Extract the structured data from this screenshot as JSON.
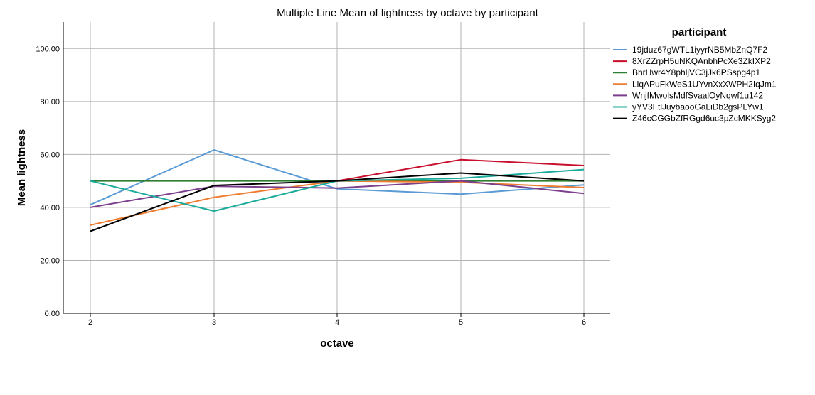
{
  "chart_data": {
    "type": "line",
    "title": "Multiple Line Mean of lightness by octave by participant",
    "xlabel": "octave",
    "ylabel": "Mean lightness",
    "x": [
      2,
      3,
      4,
      5,
      6
    ],
    "x_tick_labels": [
      "2",
      "3",
      "4",
      "5",
      "6"
    ],
    "ylim": [
      0,
      110
    ],
    "y_ticks": [
      0,
      20,
      40,
      60,
      80,
      100
    ],
    "y_tick_labels": [
      "0.00",
      "20.00",
      "40.00",
      "60.00",
      "80.00",
      "100.00"
    ],
    "grid": true,
    "legend_title": "participant",
    "legend_position": "right",
    "series": [
      {
        "name": "19jduz67gWTL1iyyrNB5MbZnQ7F2",
        "color": "#5b9bd5",
        "values": [
          41.0,
          61.7,
          47.0,
          45.0,
          48.5
        ]
      },
      {
        "name": "8XrZZrpH5uNKQAnbhPcXe3ZkIXP2",
        "color": "#c8102e",
        "values": [
          null,
          null,
          50.0,
          58.0,
          55.8
        ]
      },
      {
        "name": "BhrHwr4Y8phljVC3jJk6PSspg4p1",
        "color": "#2e7d32",
        "values": [
          50.0,
          50.0,
          50.0,
          50.0,
          50.0
        ]
      },
      {
        "name": "LiqAPuFkWeS1UYvnXxXWPH2IqJm1",
        "color": "#ed7d31",
        "values": [
          33.3,
          43.8,
          50.0,
          49.5,
          47.5
        ]
      },
      {
        "name": "WnjfMwolsMdfSvaalOyNqwf1u142",
        "color": "#7b3f8c",
        "values": [
          40.0,
          48.0,
          47.3,
          50.0,
          45.3
        ]
      },
      {
        "name": "yYV3FtlJuybaooGaLiDb2gsPLYw1",
        "color": "#1aab9b",
        "values": [
          50.0,
          38.6,
          50.0,
          51.0,
          54.3
        ]
      },
      {
        "name": "Z46cCGGbZfRGgd6uc3pZcMKKSyg2",
        "color": "#000000",
        "values": [
          31.0,
          48.3,
          50.0,
          53.0,
          50.0
        ]
      }
    ]
  }
}
